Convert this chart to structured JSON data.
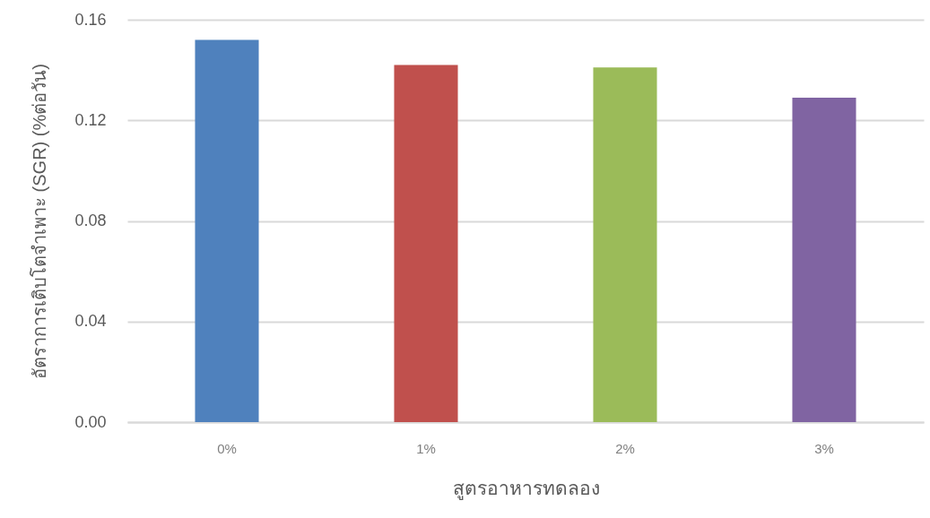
{
  "chart_data": {
    "type": "bar",
    "xlabel": "สูตรอาหารทดลอง",
    "ylabel": "อัตราการเติบโตจำเพาะ (SGR) (%ต่อวัน)",
    "categories": [
      "0%",
      "1%",
      "2%",
      "3%"
    ],
    "values": [
      0.152,
      0.142,
      0.141,
      0.129
    ],
    "colors": [
      "#4f81bd",
      "#c0504d",
      "#9bbb59",
      "#8064a2"
    ],
    "ylim": [
      0,
      0.16
    ],
    "yticks": [
      {
        "value": 0,
        "label": "0.00"
      },
      0.04,
      0.08,
      0.12,
      0.16
    ],
    "grid": "y"
  }
}
